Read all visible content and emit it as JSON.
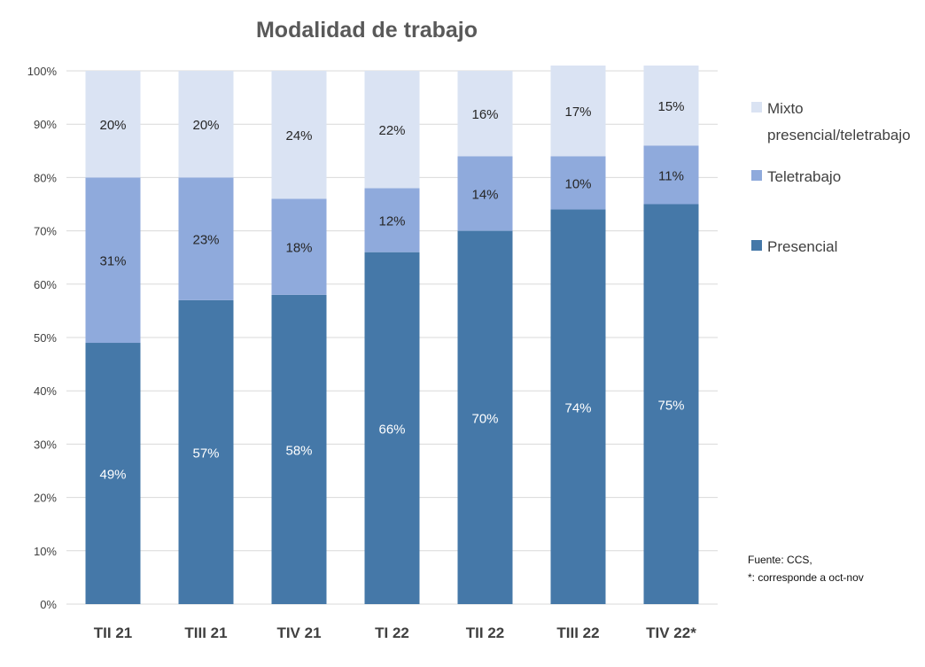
{
  "chart_data": {
    "type": "bar",
    "stacked": true,
    "title": "Modalidad de trabajo",
    "categories": [
      "TII 21",
      "TIII 21",
      "TIV 21",
      "TI 22",
      "TII 22",
      "TIII 22",
      "TIV 22*"
    ],
    "series": [
      {
        "name": "Presencial",
        "color": "#4578a8",
        "values": [
          49,
          57,
          58,
          66,
          70,
          74,
          75
        ],
        "labels": [
          "49%",
          "57%",
          "58%",
          "66%",
          "70%",
          "74%",
          "75%"
        ]
      },
      {
        "name": "Teletrabajo",
        "color": "#8faadc",
        "values": [
          31,
          23,
          18,
          12,
          14,
          10,
          11
        ],
        "labels": [
          "31%",
          "23%",
          "18%",
          "12%",
          "14%",
          "10%",
          "11%"
        ]
      },
      {
        "name": "Mixto presencial/teletrabajo",
        "color": "#dae3f3",
        "values": [
          20,
          20,
          24,
          22,
          16,
          17,
          15
        ],
        "labels": [
          "20%",
          "20%",
          "24%",
          "22%",
          "16%",
          "17%",
          "15%"
        ]
      }
    ],
    "legend_lines": [
      [
        "Mixto",
        "presencial/teletrabajo"
      ],
      [
        "Teletrabajo"
      ],
      [
        "Presencial"
      ]
    ],
    "yticks": [
      "0%",
      "10%",
      "20%",
      "30%",
      "40%",
      "50%",
      "60%",
      "70%",
      "80%",
      "90%",
      "100%"
    ],
    "ylim": [
      0,
      100
    ],
    "grid": true,
    "legend_position": "right",
    "notes": [
      "Fuente:  CCS,",
      "*: corresponde a oct-nov"
    ]
  }
}
